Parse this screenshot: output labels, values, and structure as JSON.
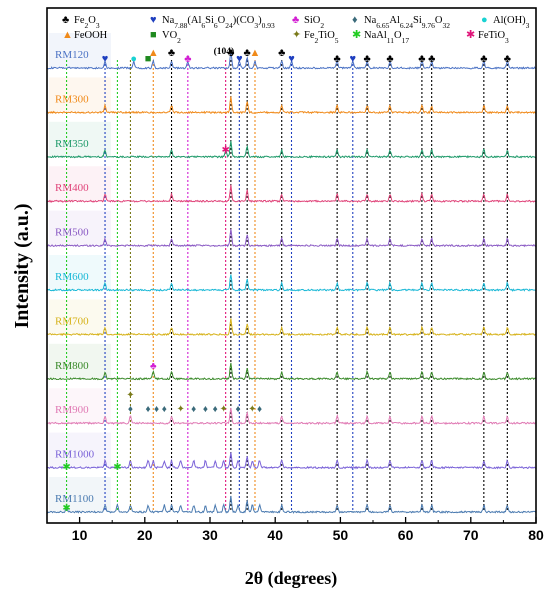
{
  "chart_data": {
    "type": "line",
    "xlabel": "2θ (degrees)",
    "ylabel": "Intensity (a.u.)",
    "xlim": [
      5,
      80
    ],
    "x_ticks": [
      10,
      20,
      30,
      40,
      50,
      60,
      70,
      80
    ],
    "grid": false,
    "legend_placement": "top",
    "legend": [
      {
        "symbol": "♣",
        "color": "#000000",
        "label": "Fe2O3"
      },
      {
        "symbol": "♥",
        "color": "#1f3fbf",
        "label": "Na7.88(Al6Si6O24)(CO3)0.93"
      },
      {
        "symbol": "♣",
        "color": "#d21ed2",
        "label": "SiO2"
      },
      {
        "symbol": "♦",
        "color": "#3a6a7a",
        "label": "Na6.65Al6.24Si9.76O32"
      },
      {
        "symbol": "●",
        "color": "#19d2d2",
        "label": "Al(OH)3"
      },
      {
        "symbol": "▲",
        "color": "#f08a1a",
        "label": "FeOOH"
      },
      {
        "symbol": "■",
        "color": "#1f8a1f",
        "label": "VO2"
      },
      {
        "symbol": "✦",
        "color": "#7a7a1a",
        "label": "Fe2TiO5"
      },
      {
        "symbol": "✱",
        "color": "#22cc22",
        "label": "NaAl11O17"
      },
      {
        "symbol": "✱",
        "color": "#e0157a",
        "label": "FeTiO3"
      }
    ],
    "peak_annotation": "(104)",
    "series": [
      {
        "name": "RM120",
        "color": "#4b72c4",
        "peaks": [
          13.9,
          18.3,
          21.3,
          24.1,
          26.6,
          33.2,
          34.5,
          35.7,
          36.9,
          41.0,
          42.5,
          49.5,
          51.9,
          54.1,
          57.6,
          62.5,
          64.0,
          72.0,
          75.6
        ]
      },
      {
        "name": "RM300",
        "color": "#f08a1a",
        "peaks": [
          13.9,
          24.1,
          33.2,
          35.7,
          41.0,
          49.5,
          54.1,
          57.6,
          62.5,
          64.0,
          72.0,
          75.6
        ]
      },
      {
        "name": "RM350",
        "color": "#1f9a6a",
        "peaks": [
          13.9,
          24.1,
          32.4,
          33.2,
          35.7,
          41.0,
          49.5,
          54.1,
          57.6,
          62.5,
          64.0,
          72.0,
          75.6
        ]
      },
      {
        "name": "RM400",
        "color": "#e0457a",
        "peaks": [
          13.9,
          24.1,
          33.2,
          35.7,
          41.0,
          49.5,
          54.1,
          57.6,
          62.5,
          64.0,
          72.0,
          75.6
        ]
      },
      {
        "name": "RM500",
        "color": "#8a5ac4",
        "peaks": [
          13.9,
          24.1,
          33.2,
          35.7,
          41.0,
          49.5,
          54.1,
          57.6,
          62.5,
          64.0,
          72.0,
          75.6
        ]
      },
      {
        "name": "RM600",
        "color": "#1ab8d6",
        "peaks": [
          13.9,
          24.1,
          33.2,
          35.7,
          41.0,
          49.5,
          54.1,
          57.6,
          62.5,
          64.0,
          72.0,
          75.6
        ]
      },
      {
        "name": "RM700",
        "color": "#d6b21a",
        "peaks": [
          13.9,
          24.1,
          33.2,
          35.7,
          41.0,
          49.5,
          54.1,
          57.6,
          62.5,
          64.0,
          72.0,
          75.6
        ]
      },
      {
        "name": "RM800",
        "color": "#3a8a2a",
        "peaks": [
          13.9,
          21.3,
          24.1,
          33.2,
          35.7,
          41.0,
          49.5,
          54.1,
          57.6,
          62.5,
          64.0,
          72.0,
          75.6
        ]
      },
      {
        "name": "RM900",
        "color": "#e07ab4",
        "peaks": [
          13.9,
          17.8,
          24.1,
          33.2,
          35.7,
          41.0,
          49.5,
          54.1,
          57.6,
          62.5,
          64.0,
          72.0,
          75.6
        ]
      },
      {
        "name": "RM1000",
        "color": "#7a62d8",
        "peaks": [
          13.9,
          17.8,
          20.5,
          21.3,
          23.0,
          24.1,
          25.5,
          27.5,
          29.3,
          30.8,
          32.1,
          33.2,
          34.3,
          35.7,
          36.5,
          37.6,
          41.0,
          49.5,
          54.1,
          57.6,
          62.5,
          64.0,
          72.0,
          75.6
        ]
      },
      {
        "name": "RM1100",
        "color": "#4a7ab0",
        "peaks": [
          8.0,
          13.9,
          15.8,
          17.8,
          20.5,
          23.0,
          24.1,
          25.5,
          27.5,
          29.3,
          30.8,
          32.1,
          33.2,
          34.3,
          35.7,
          36.5,
          37.6,
          41.0,
          49.5,
          54.1,
          57.6,
          62.5,
          64.0,
          72.0,
          75.6
        ]
      }
    ]
  }
}
